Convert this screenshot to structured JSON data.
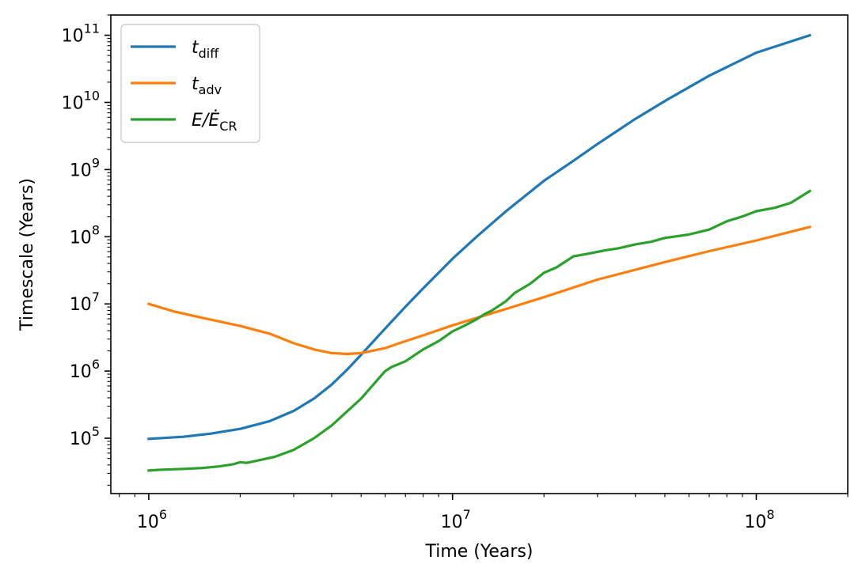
{
  "chart_data": {
    "type": "line",
    "xlabel": "Time (Years)",
    "ylabel": "Timescale (Years)",
    "xscale": "log",
    "yscale": "log",
    "xlim": [
      750000,
      200000000
    ],
    "ylim": [
      15000,
      200000000000
    ],
    "grid": false,
    "legend_position": "top-left",
    "x_ticks": [
      {
        "value": 1000000,
        "base": "10",
        "exp": "6"
      },
      {
        "value": 10000000,
        "base": "10",
        "exp": "7"
      },
      {
        "value": 100000000,
        "base": "10",
        "exp": "8"
      }
    ],
    "y_ticks": [
      {
        "value": 100000,
        "base": "10",
        "exp": "5"
      },
      {
        "value": 1000000,
        "base": "10",
        "exp": "6"
      },
      {
        "value": 10000000,
        "base": "10",
        "exp": "7"
      },
      {
        "value": 100000000,
        "base": "10",
        "exp": "8"
      },
      {
        "value": 1000000000,
        "base": "10",
        "exp": "9"
      },
      {
        "value": 10000000000,
        "base": "10",
        "exp": "10"
      },
      {
        "value": 100000000000,
        "base": "10",
        "exp": "11"
      }
    ],
    "series": [
      {
        "name": "t_diff",
        "legend_main": "t",
        "legend_sub": "diff",
        "color": "#1f77b4",
        "x": [
          1000000,
          1300000,
          1600000,
          2000000,
          2500000,
          3000000,
          3500000,
          4000000,
          4500000,
          5000000,
          6000000,
          7000000,
          8000000,
          10000000,
          12000000,
          15000000,
          20000000,
          25000000,
          30000000,
          40000000,
          50000000,
          70000000,
          100000000,
          150000000
        ],
        "y": [
          98000,
          105000,
          117000,
          138000,
          180000,
          255000,
          390000,
          630000,
          1050000,
          1750000,
          4300000,
          9100000,
          17000000,
          47000000,
          100000000,
          240000000,
          680000000,
          1350000000,
          2400000000,
          5700000000,
          10500000000,
          25000000000,
          55000000000,
          100000000000
        ]
      },
      {
        "name": "t_adv",
        "legend_main": "t",
        "legend_sub": "adv",
        "color": "#ff7f0e",
        "x": [
          1000000,
          1200000,
          1500000,
          2000000,
          2500000,
          3000000,
          3500000,
          4000000,
          4500000,
          5000000,
          6000000,
          7000000,
          8000000,
          10000000,
          15000000,
          20000000,
          30000000,
          50000000,
          70000000,
          100000000,
          150000000
        ],
        "y": [
          10000000,
          7800000,
          6200000,
          4700000,
          3600000,
          2600000,
          2100000,
          1850000,
          1800000,
          1850000,
          2200000,
          2800000,
          3400000,
          4800000,
          8400000,
          12600000,
          23000000,
          42000000,
          61000000,
          88000000,
          140000000
        ]
      },
      {
        "name": "E/E_CR",
        "legend_main": "E/Ė",
        "legend_sub": "CR",
        "color": "#2ca02c",
        "x": [
          1000000,
          1100000,
          1200000,
          1300000,
          1500000,
          1700000,
          1900000,
          2000000,
          2100000,
          2300000,
          2600000,
          3000000,
          3500000,
          4000000,
          5000000,
          6000000,
          6300000,
          7000000,
          8000000,
          9000000,
          10000000,
          11000000,
          12000000,
          12700000,
          13500000,
          15000000,
          16000000,
          18000000,
          20000000,
          22000000,
          25000000,
          28000000,
          32000000,
          35000000,
          40000000,
          45000000,
          50000000,
          60000000,
          70000000,
          80000000,
          90000000,
          100000000,
          115000000,
          130000000,
          150000000
        ],
        "y": [
          33000,
          34000,
          34500,
          35000,
          36000,
          38000,
          41000,
          44000,
          43000,
          47000,
          53000,
          67000,
          100000,
          155000,
          390000,
          1000000,
          1150000,
          1400000,
          2100000,
          2800000,
          3900000,
          4800000,
          5900000,
          7000000,
          8000000,
          11000000,
          14500000,
          20000000,
          29000000,
          35000000,
          51000000,
          56000000,
          63000000,
          67000000,
          77000000,
          84000000,
          96000000,
          108000000,
          128000000,
          170000000,
          200000000,
          240000000,
          270000000,
          320000000,
          480000000
        ]
      }
    ]
  }
}
